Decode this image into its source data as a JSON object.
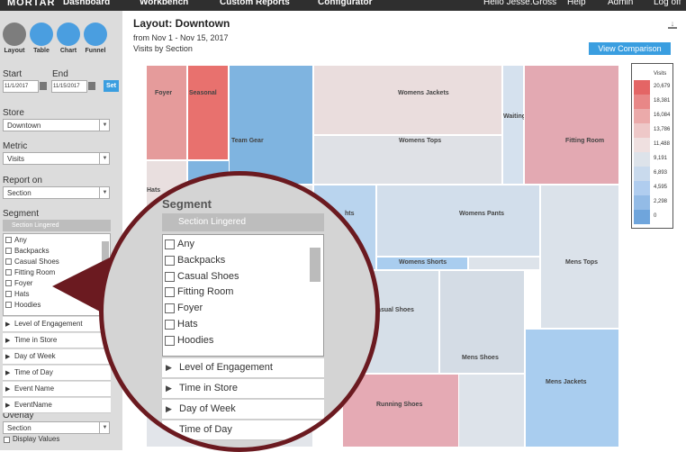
{
  "nav": {
    "logo": "MORTAR",
    "items": [
      "Dashboard",
      "Workbench",
      "Custom Reports",
      "Configurator"
    ],
    "right": [
      "Hello Jesse.Gross",
      "Help",
      "Admin",
      "Log off"
    ]
  },
  "sidebar": {
    "tools": [
      "Layout",
      "Table",
      "Chart",
      "Funnel"
    ],
    "start_label": "Start",
    "end_label": "End",
    "start_date": "11/1/2017",
    "end_date": "11/15/2017",
    "set_button": "Set",
    "store_label": "Store",
    "store_value": "Downtown",
    "metric_label": "Metric",
    "metric_value": "Visits",
    "report_label": "Report on",
    "report_value": "Section",
    "segment_label": "Segment",
    "segment_header": "Section Lingered",
    "checkboxes": [
      "Any",
      "Backpacks",
      "Casual Shoes",
      "Fitting Room",
      "Foyer",
      "Hats",
      "Hoodies"
    ],
    "collapsibles": [
      "Level of Engagement",
      "Time in Store",
      "Day of Week",
      "Time of Day",
      "Event Name",
      "EventName"
    ],
    "overlay_label": "Overlay",
    "overlay_value": "Section",
    "display_values": "Display Values"
  },
  "main": {
    "title": "Layout: Downtown",
    "date_range": "from Nov 1 - Nov 15, 2017",
    "subtitle": "Visits by Section",
    "button": "View Comparison",
    "sections": [
      "Foyer",
      "Seasonal",
      "Team Gear",
      "Hats",
      "Womens Jackets",
      "Womens Tops",
      "Waiting Area",
      "Fitting Room",
      "hts",
      "Womens Pants",
      "Womens Shorts",
      "Mens Tops",
      "Casual Shoes",
      "Mens Shoes",
      "Mens Jackets",
      "Running Shoes"
    ],
    "legend": {
      "title": "Visits",
      "values": [
        "20,679",
        "18,381",
        "16,084",
        "13,786",
        "11,488",
        "9,191",
        "6,893",
        "4,595",
        "2,298",
        "0"
      ]
    }
  }
}
